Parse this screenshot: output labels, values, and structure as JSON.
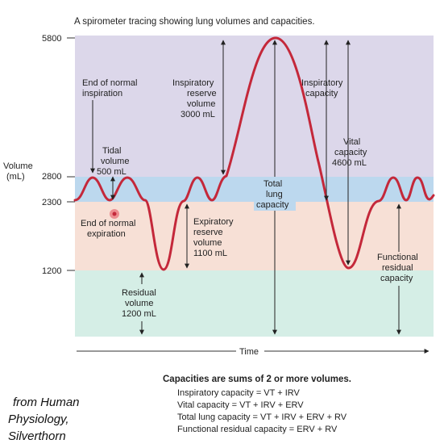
{
  "caption": "A spirometer tracing showing lung volumes and capacities.",
  "y_axis": {
    "label_line1": "Volume",
    "label_line2": "(mL)",
    "ticks": [
      "5800",
      "2800",
      "2300",
      "1200"
    ]
  },
  "x_axis_label": "Time",
  "labels": {
    "end_normal_inspiration": [
      "End of normal",
      "inspiration"
    ],
    "tidal_volume": [
      "Tidal",
      "volume",
      "500 mL"
    ],
    "inspiratory_reserve_volume": [
      "Inspiratory",
      "reserve",
      "volume",
      "3000 mL"
    ],
    "inspiratory_capacity": [
      "Inspiratory",
      "capacity"
    ],
    "vital_capacity": [
      "Vital",
      "capacity",
      "4600 mL"
    ],
    "total_lung_capacity": [
      "Total",
      "lung",
      "capacity"
    ],
    "end_normal_expiration": [
      "End of normal",
      "expiration"
    ],
    "expiratory_reserve_volume": [
      "Expiratory",
      "reserve",
      "volume",
      "1100 mL"
    ],
    "functional_residual_capacity": [
      "Functional",
      "residual",
      "capacity"
    ],
    "residual_volume": [
      "Residual",
      "volume",
      "1200 mL"
    ]
  },
  "summary": {
    "title": "Capacities are sums of 2 or more volumes.",
    "formulas": [
      "Inspiratory capacity = VT + IRV",
      "Vital capacity = VT + IRV + ERV",
      "Total lung capacity = VT + IRV + ERV + RV",
      "Functional residual capacity = ERV + RV"
    ]
  },
  "credit": [
    "from Human",
    "Physiology,",
    "Silverthorn"
  ],
  "colors": {
    "tracing": "#c4283a",
    "irv_band": "#dcd7ea",
    "tidal_band": "#bcd8ee",
    "erv_band": "#f7e0d6",
    "rv_band": "#d5eee6"
  }
}
